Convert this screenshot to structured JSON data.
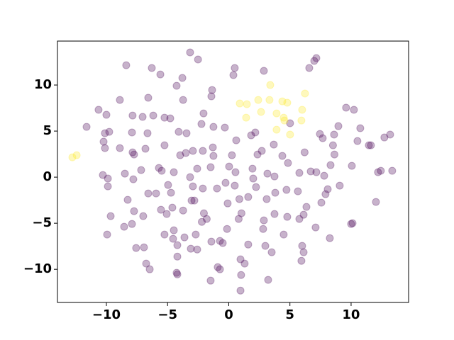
{
  "chart_data": {
    "type": "scatter",
    "xlim": [
      -14.0,
      14.7
    ],
    "ylim": [
      -13.6,
      14.77
    ],
    "xticks": [
      {
        "value": -10,
        "label": "−10"
      },
      {
        "value": -5,
        "label": "−5"
      },
      0,
      5,
      10
    ],
    "yticks": [
      {
        "value": -10,
        "label": "−10"
      },
      {
        "value": -5,
        "label": "−5"
      },
      0,
      5,
      10
    ],
    "alpha": 0.3,
    "series": [
      {
        "color": "#440154",
        "x": [
          -3.16,
          -2.51,
          7.16,
          6.99,
          -8.38,
          -6.29,
          0.49,
          2.87,
          6.58,
          -5.59,
          0.38,
          -3.79,
          -4.26,
          -1.36,
          -1.42,
          -8.9,
          -6.58,
          -3.73,
          -10.64,
          9.59,
          10.23,
          -10.0,
          -7.86,
          -7.04,
          -6.17,
          -5.25,
          -4.78,
          -2.06,
          -2.23,
          -11.62,
          -9.77,
          -10.12,
          -7.91,
          -6.64,
          -4.09,
          -3.45,
          -1.25,
          -0.32,
          1.83,
          2.17,
          5.01,
          7.45,
          7.68,
          8.61,
          8.96,
          10.75,
          10.52,
          11.45,
          11.62,
          12.72,
          13.19,
          -10.23,
          -10.12,
          -8.9,
          -6.81,
          -5.25,
          -2.93,
          -2.12,
          -3.51,
          -3.97,
          -1.3,
          -1.25,
          0.26,
          0.61,
          2.7,
          2.35,
          3.68,
          4.38,
          6.2,
          8.52,
          8.64,
          -7.86,
          -7.74,
          -10.29,
          -9.88,
          -9.88,
          -8.49,
          -7.8,
          -7.16,
          -5.71,
          -5.48,
          -4.49,
          -3.16,
          -2.58,
          -1.48,
          0.03,
          0.55,
          1.94,
          2.0,
          3.16,
          3.74,
          4.84,
          5.77,
          6.7,
          7.16,
          7.8,
          8.32,
          10.06,
          12.2,
          12.43,
          13.36,
          -8.26,
          -6.58,
          -5.94,
          -4.96,
          -4.72,
          -2.93,
          -3.04,
          -2.81,
          -2.12,
          -0.96,
          -0.26,
          0.49,
          1.59,
          2.23,
          3.1,
          3.8,
          4.72,
          5.65,
          7.91,
          8.09,
          9.07,
          7.57,
          6.35,
          12.03,
          -9.65,
          -7.74,
          -6.99,
          -5.54,
          -5.07,
          -4.61,
          -3.73,
          -2.03,
          -1.8,
          -2.2,
          -0.09,
          0.87,
          1.04,
          0.81,
          2.87,
          3.74,
          4.78,
          5.77,
          6.12,
          -8.55,
          -7.91,
          -5.25,
          -4.49,
          -3.62,
          -2.7,
          -0.14,
          2.81,
          4.49,
          7.1,
          10.0,
          10.12,
          -9.94,
          -7.57,
          -6.93,
          -4.55,
          -4.2,
          -3.1,
          -2.58,
          -1.42,
          -0.72,
          -0.49,
          1.59,
          2.99,
          3.51,
          6.0,
          6.12,
          8.26,
          -4.2,
          -6.75,
          -6.46,
          0.96,
          1.3,
          -0.9,
          -0.72,
          5.94,
          -4.26,
          -4.2,
          1.01,
          -1.48,
          3.22,
          0.96
        ],
        "values": [
          13.54,
          12.77,
          12.92,
          12.62,
          12.15,
          11.85,
          11.85,
          11.54,
          11.85,
          11.15,
          11.08,
          10.77,
          9.92,
          9.46,
          8.77,
          8.38,
          8.62,
          8.38,
          7.31,
          7.54,
          7.31,
          6.77,
          6.69,
          6.54,
          6.69,
          6.46,
          6.38,
          6.92,
          5.77,
          5.46,
          4.92,
          4.77,
          4.85,
          4.77,
          4.92,
          4.77,
          5.46,
          5.38,
          4.54,
          4.85,
          5.85,
          4.69,
          4.23,
          4.62,
          5.54,
          5.31,
          3.92,
          3.46,
          3.46,
          4.31,
          4.62,
          3.85,
          3.15,
          3.15,
          3.08,
          3.46,
          2.85,
          2.85,
          2.62,
          2.38,
          3.23,
          2.31,
          2.38,
          4.0,
          2.85,
          2.46,
          3.54,
          2.31,
          2.69,
          3.46,
          2.46,
          2.69,
          2.46,
          0.23,
          -0.15,
          -1.0,
          0.38,
          -0.23,
          0.77,
          1.0,
          0.69,
          0.54,
          0.0,
          0.92,
          1.08,
          1.15,
          0.54,
          0.92,
          -0.15,
          0.38,
          0.08,
          1.54,
          0.46,
          0.62,
          0.54,
          0.15,
          1.31,
          1.23,
          0.54,
          0.69,
          0.69,
          -2.46,
          -1.77,
          -1.77,
          -0.85,
          -1.69,
          -1.0,
          -2.54,
          -2.54,
          -1.23,
          -1.23,
          -0.62,
          -0.92,
          -2.15,
          -1.08,
          -2.38,
          -1.69,
          -1.38,
          -1.54,
          -1.85,
          -1.31,
          -0.92,
          -2.77,
          -3.23,
          -2.69,
          -4.23,
          -3.69,
          -4.23,
          -3.54,
          -4.0,
          -3.31,
          -3.62,
          -3.92,
          -4.54,
          -4.85,
          -2.85,
          -2.38,
          -3.92,
          -4.54,
          -4.69,
          -4.0,
          -4.31,
          -4.54,
          -4.08,
          -5.38,
          -5.08,
          -6.23,
          -5.77,
          -6.54,
          -6.23,
          -5.62,
          -5.62,
          -6.23,
          -5.46,
          -5.08,
          -5.0,
          -6.23,
          -7.69,
          -7.62,
          -6.69,
          -7.38,
          -7.77,
          -7.85,
          -7.0,
          -6.92,
          -7.15,
          -7.31,
          -7.46,
          -8.15,
          -7.46,
          -8.15,
          -6.62,
          -8.62,
          -9.38,
          -10.0,
          -8.92,
          -9.38,
          -9.77,
          -10.0,
          -9.08,
          -10.38,
          -10.55,
          -10.62,
          -11.23,
          -11.15,
          -12.31
        ]
      },
      {
        "color": "#fde725",
        "x": [
          -12.78,
          -12.43,
          0.9,
          1.48,
          3.39,
          2.41,
          3.33,
          2.64,
          3.91,
          4.38,
          4.78,
          4.49,
          4.55,
          6.23,
          6.0,
          5.94,
          5.01,
          3.91,
          1.42
        ],
        "values": [
          2.15,
          2.38,
          8.0,
          7.92,
          10.0,
          8.38,
          8.38,
          7.08,
          6.92,
          8.23,
          8.08,
          6.46,
          6.15,
          9.08,
          7.31,
          6.15,
          4.62,
          5.15,
          6.46
        ]
      }
    ]
  }
}
